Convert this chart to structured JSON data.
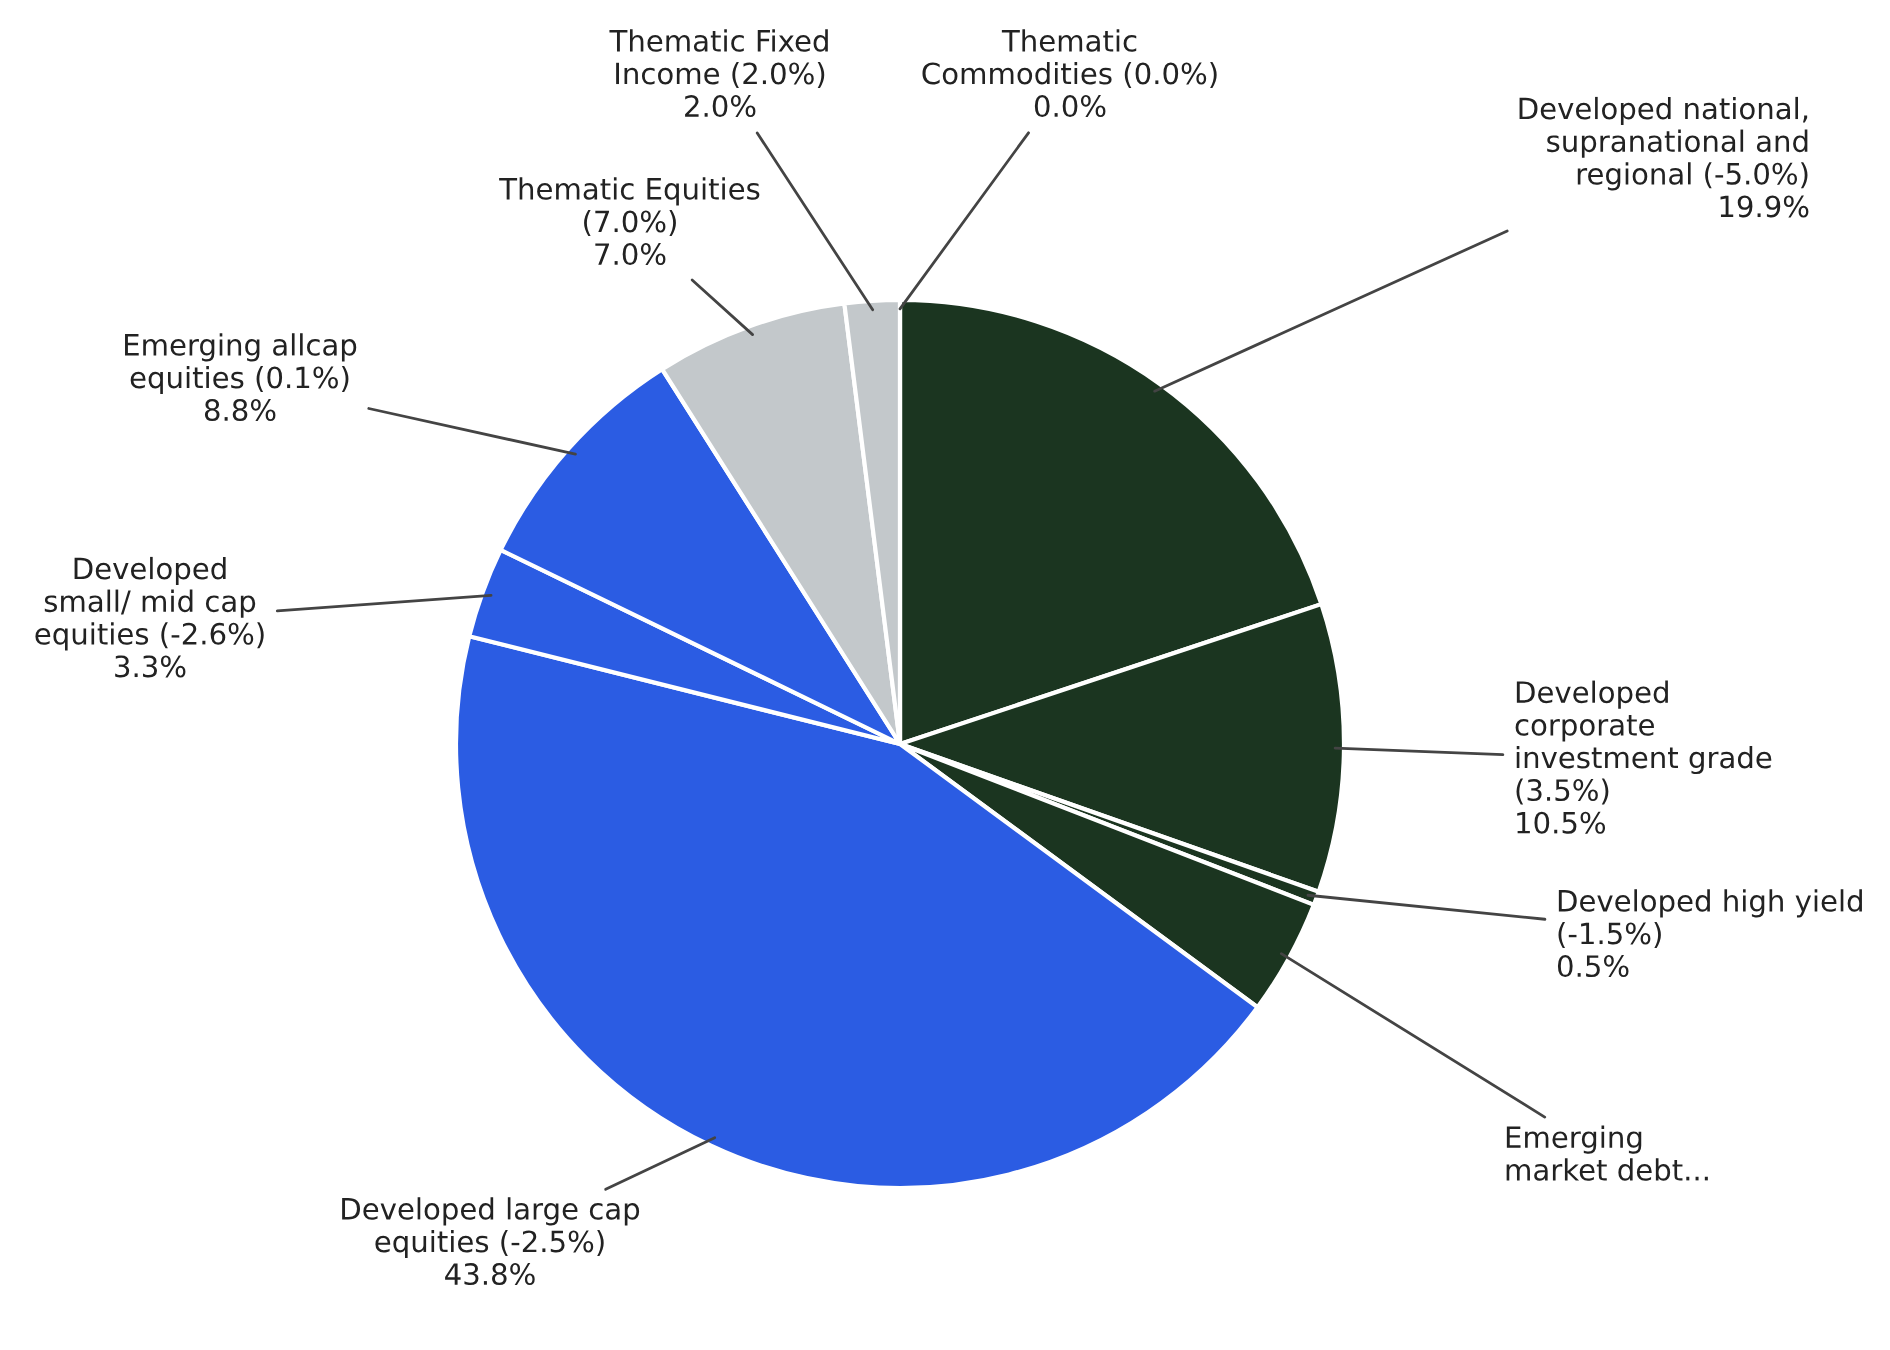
{
  "chart_data": {
    "type": "pie",
    "categories": [
      "Developed national,\nsupranational and\nregional (-5.0%)",
      "Developed\ncorporate\ninvestment grade\n(3.5%)",
      "Developed high yield\n(-1.5%)",
      "Emerging\nmarket debt...",
      "Developed large cap\nequities (-2.5%)",
      "Developed\nsmall/ mid cap\nequities (-2.6%)",
      "Emerging allcap\nequities (0.1%)",
      "Thematic Equities\n(7.0%)",
      "Thematic Fixed\nIncome (2.0%)",
      "Thematic\nCommodities (0.0%)"
    ],
    "values": [
      19.9,
      10.5,
      0.5,
      4.2,
      43.8,
      3.3,
      8.8,
      7.0,
      2.0,
      0.0
    ],
    "value_labels": [
      "19.9%",
      "10.5%",
      "0.5%",
      null,
      "43.8%",
      "3.3%",
      "8.8%",
      "7.0%",
      "2.0%",
      "0.0%"
    ],
    "colors": [
      "#1b3520",
      "#1b3520",
      "#1b3520",
      "#1b3520",
      "#2b5ce3",
      "#2b5ce3",
      "#2b5ce3",
      "#c3c8cb",
      "#c3c8cb",
      "#c3c8cb"
    ]
  }
}
